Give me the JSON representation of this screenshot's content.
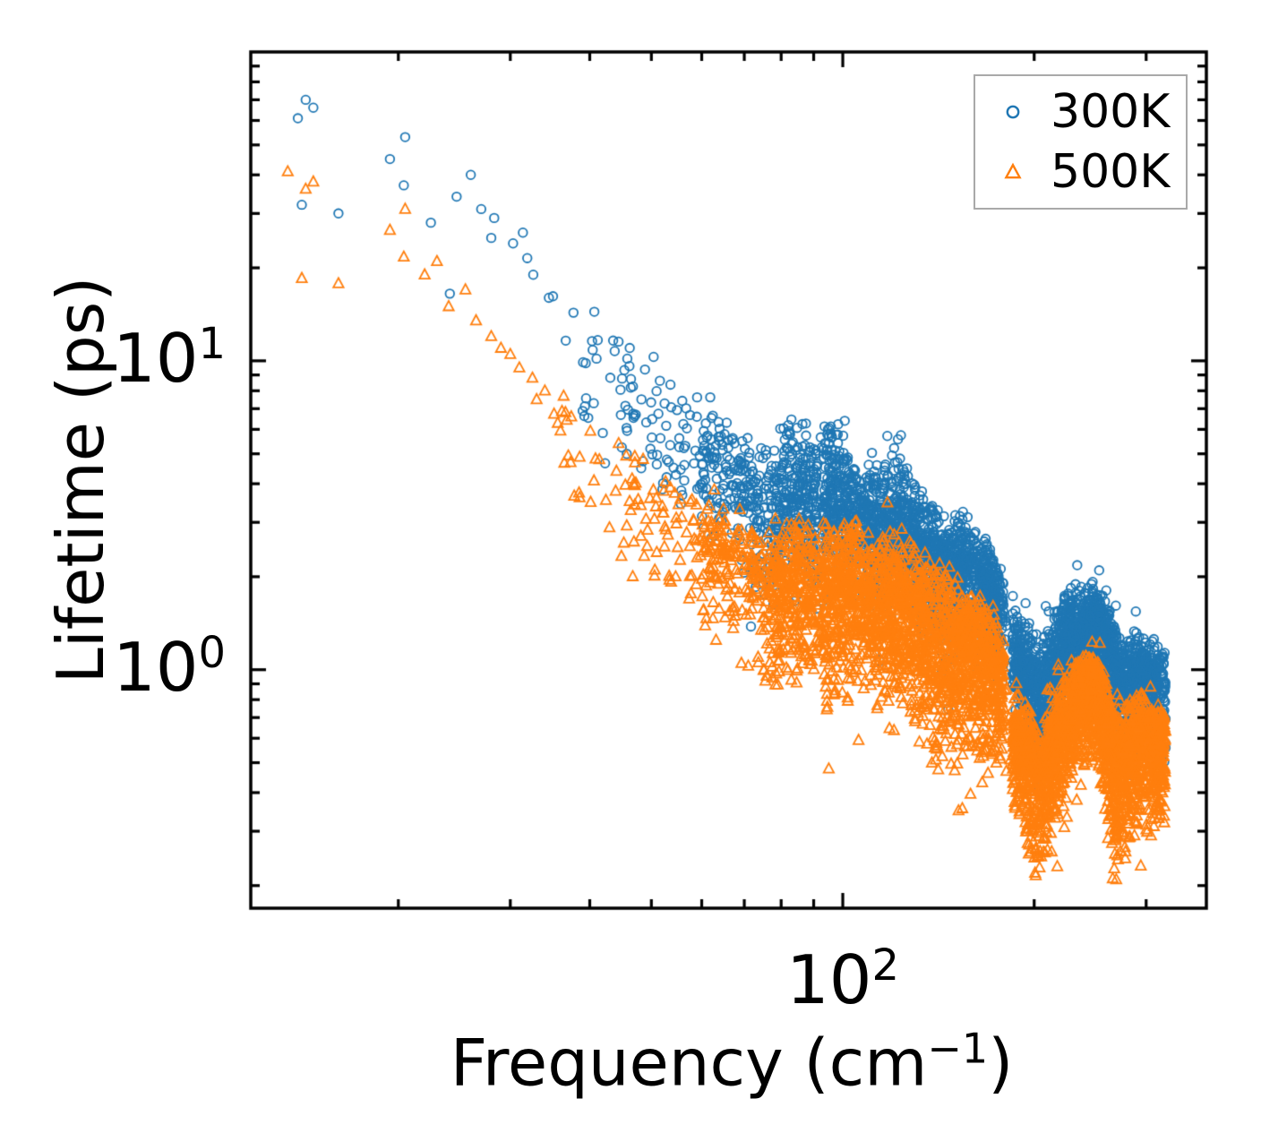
{
  "axes": {
    "xlabel": {
      "pre": "Frequency (cm",
      "sup": "−1",
      "post": ")"
    },
    "ylabel": "Lifetime (ps)",
    "xscale": "log",
    "yscale": "log",
    "xlim": [
      11.72,
      373.1
    ],
    "ylim": [
      0.169,
      100
    ],
    "x_ticks": {
      "major": [
        {
          "base": "10",
          "exp": "2",
          "value": 100
        }
      ],
      "minor_values": [
        20,
        30,
        40,
        50,
        60,
        70,
        80,
        90,
        200,
        300
      ]
    },
    "y_ticks": {
      "major": [
        {
          "base": "10",
          "exp": "1",
          "value": 10
        },
        {
          "base": "10",
          "exp": "0",
          "value": 1
        }
      ],
      "minor_values": [
        0.2,
        0.3,
        0.4,
        0.5,
        0.6,
        0.7,
        0.8,
        0.9,
        2,
        3,
        4,
        5,
        6,
        7,
        8,
        9,
        20,
        30,
        40,
        50,
        60,
        70,
        80,
        90
      ]
    },
    "spine_color": "#000000",
    "legend_edge_color": "#a9a9a9"
  },
  "legend": {
    "position": "upper right",
    "entries": [
      {
        "label": "300K",
        "marker": "circle",
        "color": "#1f77b4"
      },
      {
        "label": "500K",
        "marker": "triangle-up",
        "color": "#ff7f0e"
      }
    ]
  },
  "chart_data": {
    "type": "scatter",
    "title": "",
    "xlabel": "Frequency (cm^-1)",
    "ylabel": "Lifetime (ps)",
    "xlim": [
      11.72,
      373.1
    ],
    "ylim": [
      0.169,
      100
    ],
    "grid": false,
    "seed": 12345,
    "bands": [
      {
        "range": [
          35,
          45
        ],
        "n": 26
      },
      {
        "range": [
          45,
          60
        ],
        "n": 70
      },
      {
        "range": [
          60,
          78
        ],
        "n": 230
      },
      {
        "range": [
          78,
          91
        ],
        "n": 300
      },
      {
        "range": [
          91,
          93
        ],
        "n": 16
      },
      {
        "range": [
          93,
          112
        ],
        "n": 480
      },
      {
        "range": [
          112,
          138
        ],
        "n": 560
      },
      {
        "range": [
          138,
          162
        ],
        "n": 460
      },
      {
        "range": [
          162,
          179
        ],
        "n": 300
      },
      {
        "range": [
          179,
          185
        ],
        "n": 6
      },
      {
        "range": [
          185,
          215
        ],
        "n": 560
      },
      {
        "range": [
          215,
          245
        ],
        "n": 520
      },
      {
        "range": [
          245,
          275
        ],
        "n": 520
      },
      {
        "range": [
          275,
          322
        ],
        "n": 560
      }
    ],
    "series": [
      {
        "name": "300K",
        "marker": "circle",
        "color": "#1f77b4",
        "marker_radius": 4.8,
        "sparse_points": [
          [
            13.9,
            61
          ],
          [
            14.3,
            70
          ],
          [
            14.7,
            66
          ],
          [
            14.1,
            32
          ],
          [
            16.1,
            30
          ],
          [
            19.4,
            45
          ],
          [
            20.4,
            37
          ],
          [
            20.5,
            53
          ],
          [
            22.5,
            28
          ],
          [
            24.1,
            16.5
          ],
          [
            24.7,
            34
          ],
          [
            26.0,
            40
          ],
          [
            27.0,
            31
          ],
          [
            28.0,
            25
          ],
          [
            28.3,
            29
          ],
          [
            30.3,
            24
          ],
          [
            31.4,
            26
          ],
          [
            31.9,
            21.5
          ],
          [
            32.6,
            19
          ],
          [
            34.5,
            16
          ]
        ],
        "trend_anchors": [
          [
            12,
            50,
            0.2,
            0.2
          ],
          [
            14,
            55,
            0.25,
            0.35
          ],
          [
            16,
            38,
            0.25,
            0.3
          ],
          [
            20,
            32,
            0.3,
            0.3
          ],
          [
            25,
            22,
            0.25,
            0.3
          ],
          [
            30,
            15,
            0.2,
            0.3
          ],
          [
            36,
            11,
            0.2,
            0.25
          ],
          [
            43,
            8.2,
            0.22,
            0.28
          ],
          [
            50,
            6.3,
            0.22,
            0.28
          ],
          [
            58,
            5.1,
            0.2,
            0.28
          ],
          [
            65,
            4.3,
            0.2,
            0.25
          ],
          [
            72,
            3.7,
            0.2,
            0.3
          ],
          [
            76,
            3.1,
            0.22,
            0.35
          ],
          [
            80,
            3.3,
            0.28,
            0.3
          ],
          [
            85,
            3.6,
            0.3,
            0.28
          ],
          [
            90,
            3.3,
            0.25,
            0.3
          ],
          [
            95,
            3.5,
            0.3,
            0.28
          ],
          [
            101,
            3.2,
            0.25,
            0.3
          ],
          [
            108,
            2.9,
            0.22,
            0.3
          ],
          [
            115,
            2.7,
            0.25,
            0.32
          ],
          [
            122,
            2.9,
            0.3,
            0.3
          ],
          [
            128,
            2.6,
            0.22,
            0.3
          ],
          [
            134,
            2.4,
            0.2,
            0.3
          ],
          [
            140,
            2.2,
            0.2,
            0.32
          ],
          [
            147,
            1.95,
            0.2,
            0.35
          ],
          [
            154,
            2.15,
            0.2,
            0.28
          ],
          [
            161,
            2.0,
            0.18,
            0.3
          ],
          [
            168,
            1.85,
            0.18,
            0.3
          ],
          [
            174,
            1.7,
            0.15,
            0.28
          ],
          [
            179,
            1.55,
            0.12,
            0.22
          ],
          [
            183,
            1.15,
            0.15,
            0.2
          ],
          [
            188,
            1.1,
            0.18,
            0.22
          ],
          [
            196,
            0.95,
            0.2,
            0.28
          ],
          [
            204,
            0.82,
            0.2,
            0.3
          ],
          [
            211,
            0.92,
            0.2,
            0.28
          ],
          [
            219,
            1.1,
            0.2,
            0.25
          ],
          [
            228,
            1.25,
            0.18,
            0.22
          ],
          [
            238,
            1.35,
            0.15,
            0.2
          ],
          [
            249,
            1.42,
            0.12,
            0.22
          ],
          [
            257,
            1.25,
            0.15,
            0.28
          ],
          [
            266,
            1.0,
            0.18,
            0.3
          ],
          [
            276,
            0.85,
            0.2,
            0.3
          ],
          [
            286,
            0.92,
            0.18,
            0.26
          ],
          [
            297,
            0.95,
            0.15,
            0.25
          ],
          [
            308,
            0.9,
            0.14,
            0.28
          ],
          [
            322,
            0.85,
            0.14,
            0.3
          ]
        ]
      },
      {
        "name": "500K",
        "marker": "triangle-up",
        "color": "#ff7f0e",
        "marker_half_width": 5.7,
        "sparse_points": [
          [
            13.4,
            41
          ],
          [
            14.3,
            36
          ],
          [
            14.7,
            38
          ],
          [
            14.1,
            18.5
          ],
          [
            16.1,
            17.8
          ],
          [
            19.4,
            26.5
          ],
          [
            20.4,
            21.7
          ],
          [
            20.5,
            31
          ],
          [
            22.0,
            19
          ],
          [
            23.0,
            21
          ],
          [
            24.0,
            15
          ],
          [
            25.5,
            17
          ],
          [
            26.5,
            13.5
          ],
          [
            28.0,
            12
          ],
          [
            29.0,
            11
          ],
          [
            30.0,
            10.5
          ],
          [
            31.0,
            9.5
          ],
          [
            32.5,
            8.8
          ],
          [
            33.0,
            7.5
          ],
          [
            34.0,
            8
          ]
        ],
        "trend_anchors": [
          [
            12,
            28,
            0.2,
            0.2
          ],
          [
            14,
            27,
            0.18,
            0.22
          ],
          [
            16,
            18,
            0.15,
            0.15
          ],
          [
            20,
            15,
            0.2,
            0.2
          ],
          [
            25,
            10.5,
            0.2,
            0.22
          ],
          [
            30,
            7.5,
            0.2,
            0.25
          ],
          [
            36,
            5.6,
            0.2,
            0.28
          ],
          [
            43,
            4.2,
            0.22,
            0.3
          ],
          [
            50,
            3.3,
            0.22,
            0.3
          ],
          [
            58,
            2.7,
            0.2,
            0.32
          ],
          [
            65,
            2.35,
            0.2,
            0.3
          ],
          [
            72,
            2.05,
            0.2,
            0.35
          ],
          [
            76,
            1.75,
            0.22,
            0.45
          ],
          [
            80,
            1.8,
            0.25,
            0.35
          ],
          [
            85,
            1.9,
            0.25,
            0.3
          ],
          [
            90,
            1.85,
            0.25,
            0.35
          ],
          [
            95,
            1.75,
            0.25,
            0.45
          ],
          [
            101,
            1.8,
            0.25,
            0.35
          ],
          [
            108,
            1.7,
            0.25,
            0.35
          ],
          [
            115,
            1.55,
            0.25,
            0.35
          ],
          [
            122,
            1.6,
            0.25,
            0.35
          ],
          [
            128,
            1.5,
            0.25,
            0.4
          ],
          [
            134,
            1.4,
            0.25,
            0.45
          ],
          [
            140,
            1.3,
            0.25,
            0.48
          ],
          [
            147,
            1.25,
            0.25,
            0.42
          ],
          [
            154,
            1.2,
            0.22,
            0.4
          ],
          [
            161,
            1.1,
            0.22,
            0.45
          ],
          [
            168,
            1.05,
            0.2,
            0.38
          ],
          [
            174,
            0.98,
            0.18,
            0.32
          ],
          [
            179,
            0.92,
            0.15,
            0.25
          ],
          [
            183,
            0.62,
            0.15,
            0.2
          ],
          [
            188,
            0.58,
            0.18,
            0.25
          ],
          [
            196,
            0.5,
            0.2,
            0.32
          ],
          [
            204,
            0.42,
            0.2,
            0.38
          ],
          [
            211,
            0.48,
            0.2,
            0.32
          ],
          [
            219,
            0.58,
            0.2,
            0.28
          ],
          [
            228,
            0.68,
            0.2,
            0.24
          ],
          [
            238,
            0.78,
            0.18,
            0.22
          ],
          [
            249,
            0.88,
            0.12,
            0.25
          ],
          [
            257,
            0.72,
            0.16,
            0.35
          ],
          [
            266,
            0.52,
            0.2,
            0.42
          ],
          [
            276,
            0.5,
            0.2,
            0.35
          ],
          [
            286,
            0.56,
            0.18,
            0.3
          ],
          [
            297,
            0.6,
            0.16,
            0.3
          ],
          [
            308,
            0.55,
            0.15,
            0.32
          ],
          [
            322,
            0.58,
            0.14,
            0.3
          ]
        ]
      }
    ]
  }
}
